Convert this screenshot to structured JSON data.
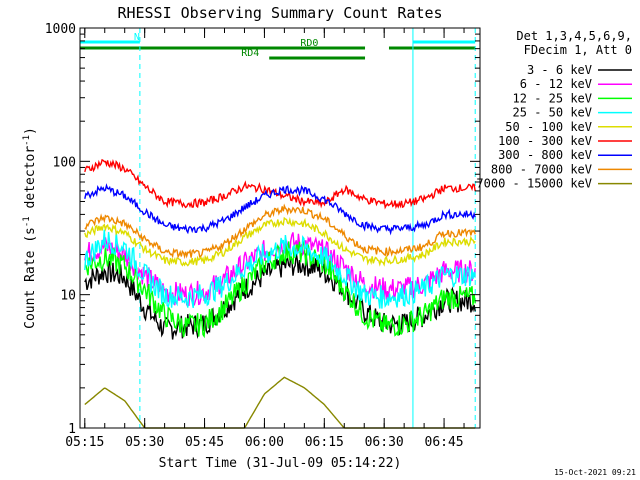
{
  "chart_data": {
    "type": "line",
    "title": "RHESSI Observing Summary Count Rates",
    "xlabel": "Start Time (31-Jul-09 05:14:22)",
    "ylabel_main": "Count Rate (s",
    "ylabel_sup1": "-1",
    "ylabel_mid": " detector",
    "ylabel_sup2": "-1",
    "ylabel_end": ")",
    "y_scale": "log",
    "ylim": [
      1,
      1000
    ],
    "xlim_minutes": [
      5.23,
      6.9
    ],
    "x_ticks": [
      {
        "t": 5.25,
        "label": "05:15"
      },
      {
        "t": 5.5,
        "label": "05:30"
      },
      {
        "t": 5.75,
        "label": "05:45"
      },
      {
        "t": 6.0,
        "label": "06:00"
      },
      {
        "t": 6.25,
        "label": "06:15"
      },
      {
        "t": 6.5,
        "label": "06:30"
      },
      {
        "t": 6.75,
        "label": "06:45"
      }
    ],
    "y_ticks": [
      {
        "v": 1,
        "label": "1"
      },
      {
        "v": 10,
        "label": "10"
      },
      {
        "v": 100,
        "label": "100"
      },
      {
        "v": 1000,
        "label": "1000"
      }
    ],
    "legend_header": [
      "Det 1,3,4,5,6,9,",
      "FDecim 1, Att 0"
    ],
    "legend_position": "right",
    "series": [
      {
        "name": "3 - 6 keV",
        "color": "#000000",
        "values": [
          12.5,
          15,
          13.5,
          8,
          5.5,
          5.8,
          6,
          8,
          11,
          14,
          16.5,
          17,
          15,
          11,
          7.5,
          6,
          6,
          7,
          9
        ]
      },
      {
        "name": "6 - 12 keV",
        "color": "#ff00ff",
        "values": [
          20,
          23,
          20,
          14,
          10.5,
          10,
          10.5,
          13,
          17,
          21,
          24.5,
          24,
          21,
          16,
          12,
          11,
          11,
          12,
          15
        ]
      },
      {
        "name": "12 - 25 keV",
        "color": "#00ff00",
        "values": [
          16.5,
          19,
          16.5,
          11,
          7,
          5.8,
          6,
          8,
          12,
          17,
          21,
          20.5,
          17,
          11,
          7,
          5.8,
          6,
          7,
          9.5
        ]
      },
      {
        "name": "25 - 50 keV",
        "color": "#00ffff",
        "values": [
          18,
          26,
          23,
          14,
          10,
          9.5,
          10,
          12,
          16,
          20,
          23,
          22,
          19,
          14,
          10,
          9.5,
          10,
          11,
          14
        ]
      },
      {
        "name": "50 - 100 keV",
        "color": "#dddd00",
        "values": [
          28,
          33,
          29,
          22,
          18,
          17.5,
          18,
          21,
          27,
          33,
          36,
          34,
          29,
          22,
          18.5,
          18,
          18.5,
          20,
          25
        ]
      },
      {
        "name": "100 - 300 keV",
        "color": "#ff0000",
        "values": [
          85,
          100,
          88,
          65,
          50,
          48,
          49,
          55,
          65,
          62,
          55,
          50,
          48,
          62,
          52,
          48,
          48,
          52,
          63
        ]
      },
      {
        "name": "300 - 800 keV",
        "color": "#0000ff",
        "values": [
          55,
          63,
          55,
          42,
          33,
          31,
          31.5,
          36,
          45,
          55,
          62,
          60,
          52,
          41,
          33,
          31,
          31.5,
          33,
          40
        ]
      },
      {
        "name": "800 - 7000 keV",
        "color": "#ee8800",
        "values": [
          33,
          38,
          34,
          26,
          21,
          20,
          20.5,
          24,
          31,
          39,
          44,
          43,
          37,
          28,
          22,
          21,
          21.5,
          23,
          29
        ]
      },
      {
        "name": "7000 - 15000 keV",
        "color": "#888800",
        "values": [
          1.5,
          2.0,
          1.6,
          1.0,
          1.0,
          1.0,
          1.0,
          1.0,
          1.0,
          1.8,
          2.4,
          2.0,
          1.5,
          1.0,
          1.0,
          1.0,
          1.0,
          1.0,
          1.0
        ]
      }
    ],
    "series_x_minutes": [
      5.25,
      5.333,
      5.417,
      5.5,
      5.583,
      5.667,
      5.75,
      5.833,
      5.917,
      6.0,
      6.083,
      6.167,
      6.25,
      6.333,
      6.417,
      6.5,
      6.583,
      6.667,
      6.75
    ],
    "flags": [
      {
        "label": "N",
        "color": "#00ffff",
        "segments": [
          [
            5.23,
            5.48
          ],
          [
            6.62,
            6.88
          ]
        ]
      },
      {
        "label": "RD0",
        "color": "#008800",
        "segments": [
          [
            5.23,
            6.42
          ],
          [
            6.52,
            6.88
          ]
        ]
      },
      {
        "label": "RD4",
        "color": "#008800",
        "segments": [
          [
            6.02,
            6.42
          ]
        ]
      }
    ],
    "vertical_lines": [
      {
        "t": 5.23,
        "style": "solid"
      },
      {
        "t": 5.48,
        "style": "dashed"
      },
      {
        "t": 6.62,
        "style": "solid"
      },
      {
        "t": 6.88,
        "style": "dashed"
      }
    ]
  },
  "footer": {
    "date": "15-Oct-2021 09:21"
  }
}
